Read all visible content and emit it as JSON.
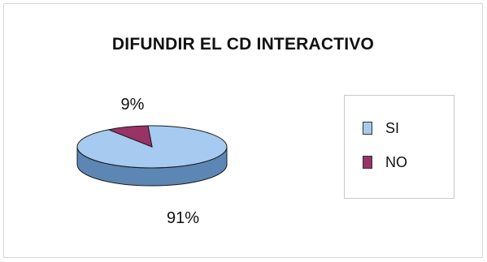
{
  "chart_data": {
    "type": "pie",
    "title": "DIFUNDIR EL CD INTERACTIVO",
    "categories": [
      "SI",
      "NO"
    ],
    "values": [
      91,
      9
    ],
    "data_labels": [
      "91%",
      "9%"
    ],
    "colors": [
      "#a6caf0",
      "#993366"
    ],
    "side_colors": [
      "#5c86b4",
      "#6e2448"
    ],
    "legend_position": "right",
    "style": "3d"
  }
}
